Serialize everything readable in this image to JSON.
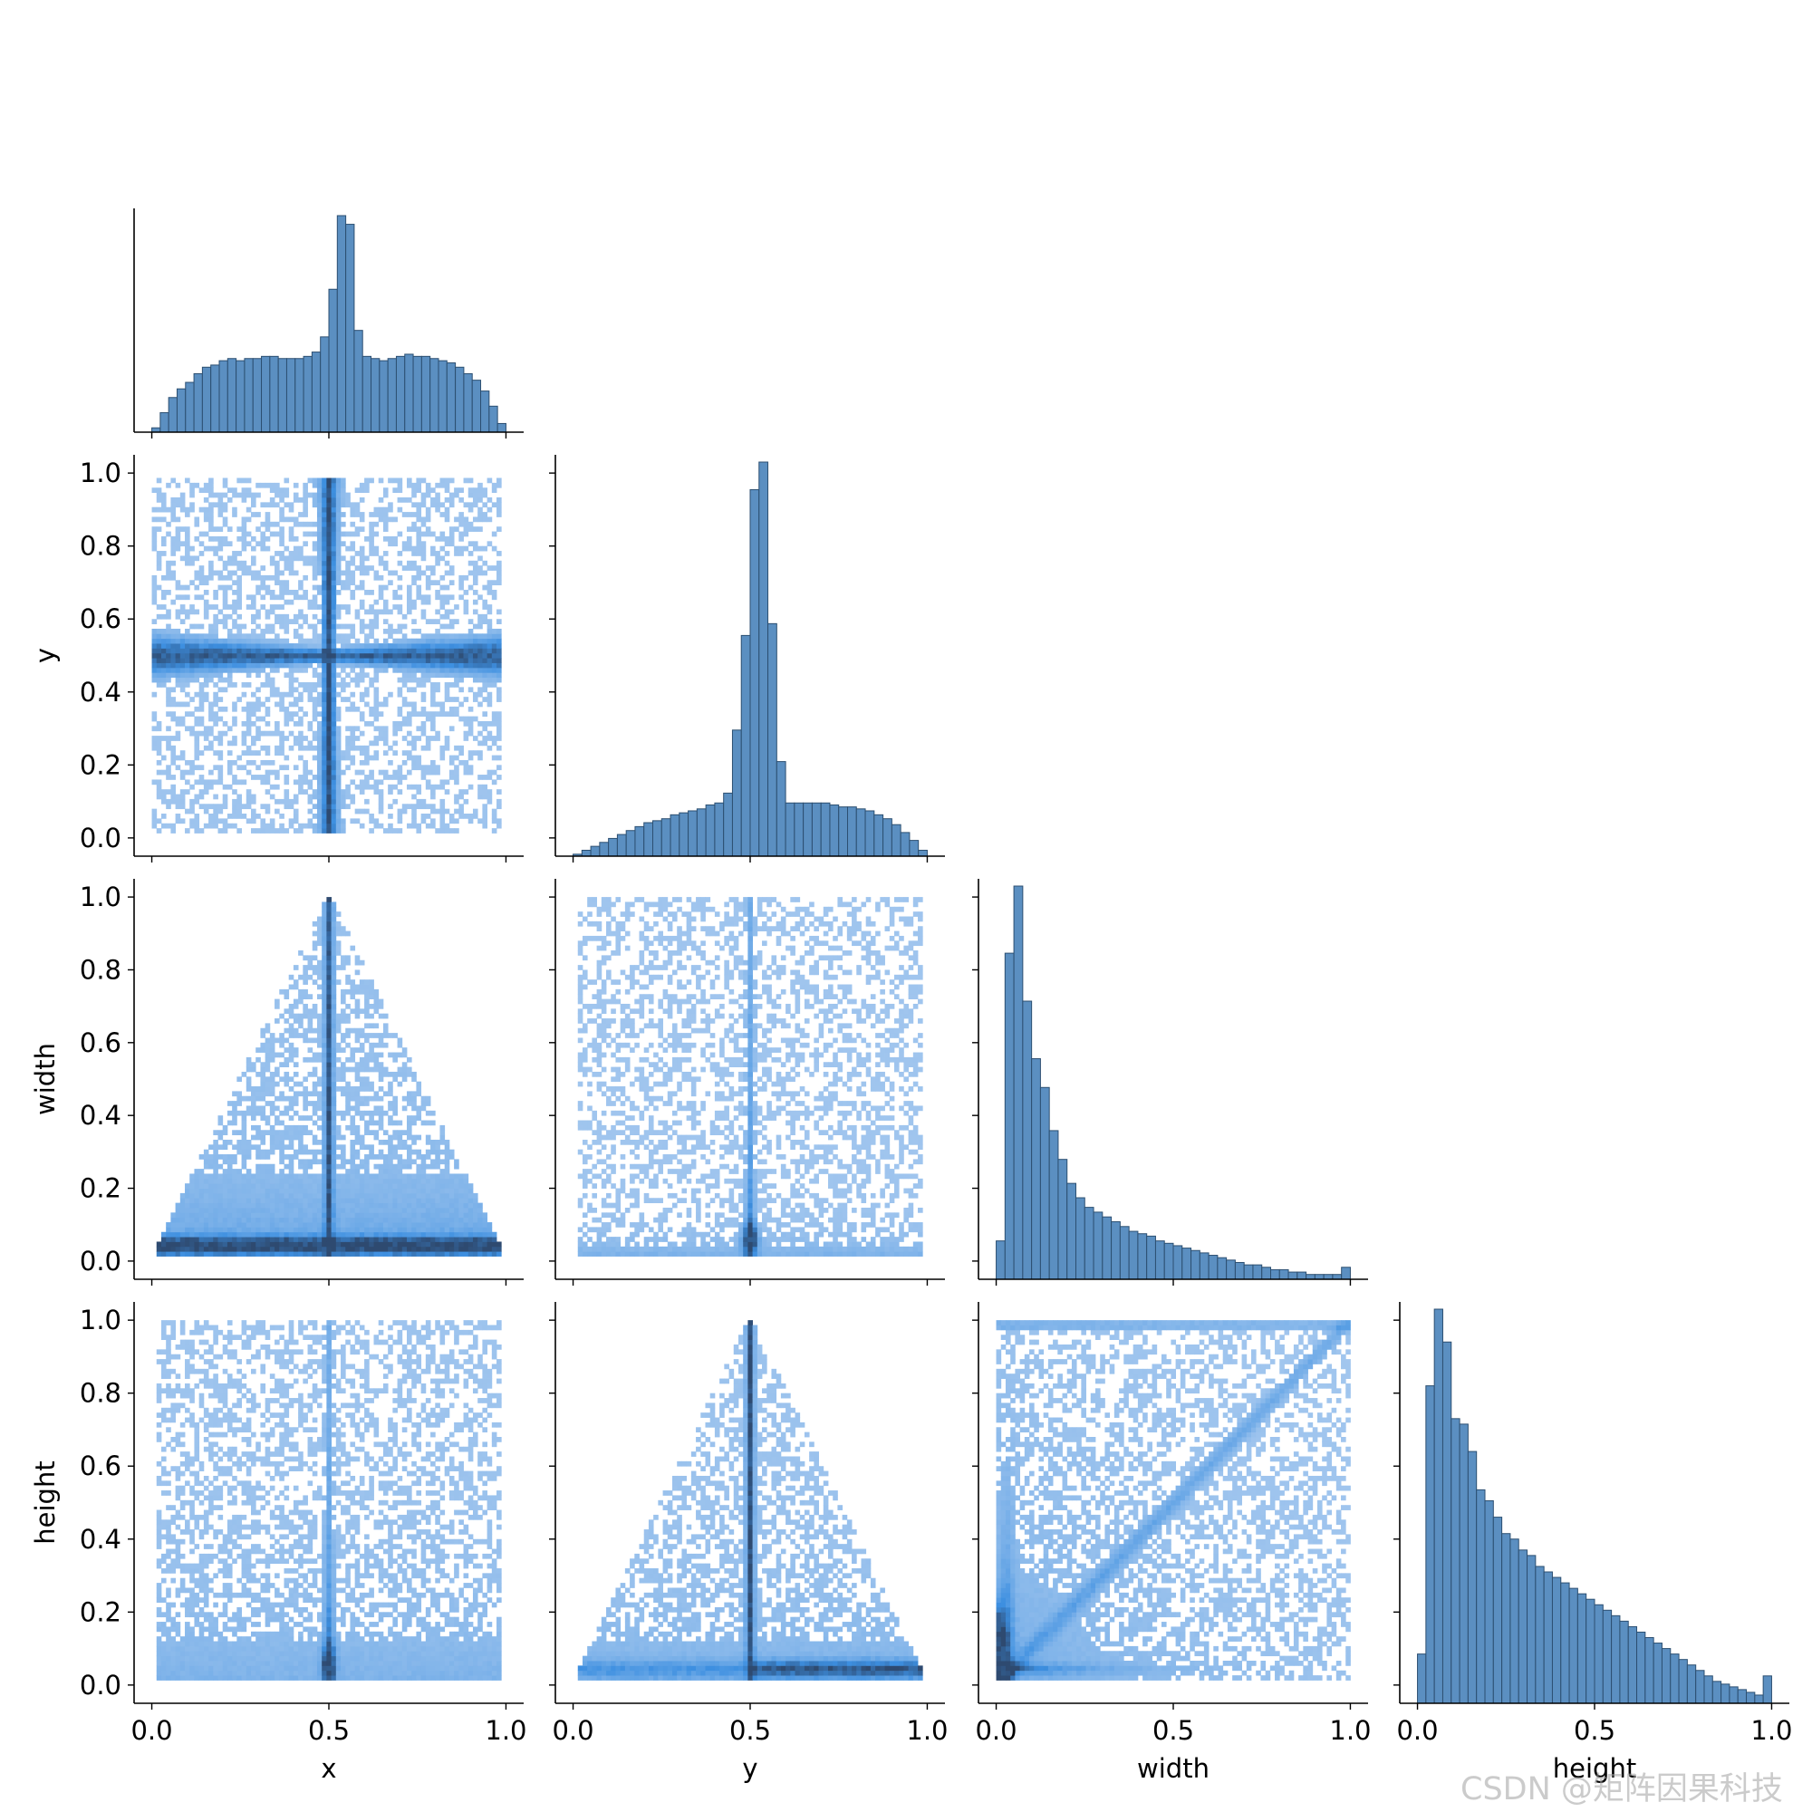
{
  "variables": [
    "x",
    "y",
    "width",
    "height"
  ],
  "chart_data": {
    "type": "pairplot",
    "corner": true,
    "variables": [
      "x",
      "y",
      "width",
      "height"
    ],
    "axis_range": [
      0,
      1
    ],
    "x_ticks": [
      0.0,
      0.5,
      1.0
    ],
    "x_tick_labels": [
      "0.0",
      "0.5",
      "1.0"
    ],
    "y_ticks": [
      0.0,
      0.2,
      0.4,
      0.6,
      0.8,
      1.0
    ],
    "y_tick_labels": [
      "0.0",
      "0.2",
      "0.4",
      "0.6",
      "0.8",
      "1.0"
    ],
    "colors": {
      "hist_fill": "#5b8fc1",
      "hist_edge": "#2c4f71",
      "heat_light": "#a7c9ef",
      "heat_mid": "#3d8fe0",
      "heat_dark": "#2e4a70"
    },
    "histograms": [
      {
        "variable": "x",
        "bin_edges_range": [
          0,
          1
        ],
        "counts": [
          2,
          9,
          16,
          20,
          23,
          27,
          30,
          31,
          33,
          34,
          33,
          34,
          34,
          35,
          35,
          34,
          34,
          34,
          35,
          37,
          44,
          66,
          100,
          96,
          47,
          35,
          34,
          33,
          34,
          35,
          36,
          35,
          35,
          34,
          33,
          32,
          30,
          27,
          24,
          19,
          12,
          4
        ]
      },
      {
        "variable": "y",
        "bin_edges_range": [
          0,
          1
        ],
        "counts": [
          0.5,
          1.5,
          2.5,
          3.5,
          4.5,
          5.5,
          6.5,
          7.5,
          8.5,
          9.0,
          9.5,
          10.5,
          11.0,
          11.5,
          12.0,
          13.0,
          13.5,
          16.0,
          32.0,
          56.0,
          93.0,
          100.0,
          59.0,
          24.0,
          13.5,
          13.5,
          13.5,
          13.5,
          13.5,
          13.0,
          12.5,
          12.5,
          12.0,
          11.5,
          10.5,
          9.5,
          8.0,
          6.0,
          4.0,
          1.5
        ]
      },
      {
        "variable": "width",
        "bin_edges_range": [
          0,
          1
        ],
        "counts": [
          8,
          68,
          82,
          58,
          46,
          40,
          31,
          25,
          20,
          17,
          15,
          14,
          13,
          12,
          11,
          10,
          9.5,
          9,
          8,
          7.5,
          7,
          6.5,
          6,
          5.5,
          5,
          4.5,
          4,
          3.5,
          3,
          3,
          2.5,
          2,
          2,
          1.5,
          1.5,
          1,
          1,
          1,
          1,
          2.5
        ]
      },
      {
        "variable": "height",
        "bin_edges_range": [
          0,
          1
        ],
        "counts": [
          9,
          58,
          72,
          66,
          52,
          51,
          46,
          39,
          37,
          34,
          31,
          30,
          28,
          27,
          25,
          24,
          23,
          22,
          21,
          20,
          19,
          18,
          17,
          16,
          15,
          14,
          13,
          12,
          11,
          10,
          9,
          8,
          7,
          6,
          5,
          4,
          3.5,
          3,
          2.5,
          2,
          1.5,
          5
        ]
      }
    ],
    "bivariate_histograms": [
      {
        "x": "x",
        "y": "y",
        "pattern": "cross centered at (0.5, 0.5), dense along x=0.5 and y=0.5, fills the unit square"
      },
      {
        "x": "x",
        "y": "width",
        "pattern": "triangle with apex at (0.5, 1.0), dense vertical line at x=0.5 and dense band at width≈0.05"
      },
      {
        "x": "y",
        "y": "width",
        "pattern": "broad rectangular cloud, dense vertical streak at y=0.5, concentrated at width<0.1"
      },
      {
        "x": "x",
        "y": "height",
        "pattern": "broad rectangular cloud, dense vertical streak at x=0.5, concentrated at height<0.1"
      },
      {
        "x": "y",
        "y": "height",
        "pattern": "triangle with apex at (0.5, 1.0), dense vertical line at y=0.5 and band at height≈0.05"
      },
      {
        "x": "width",
        "y": "height",
        "pattern": "dense near origin along axes, diagonal ridge width≈height, sparse toward (1,1)"
      }
    ]
  },
  "watermark": "CSDN @矩阵因果科技"
}
